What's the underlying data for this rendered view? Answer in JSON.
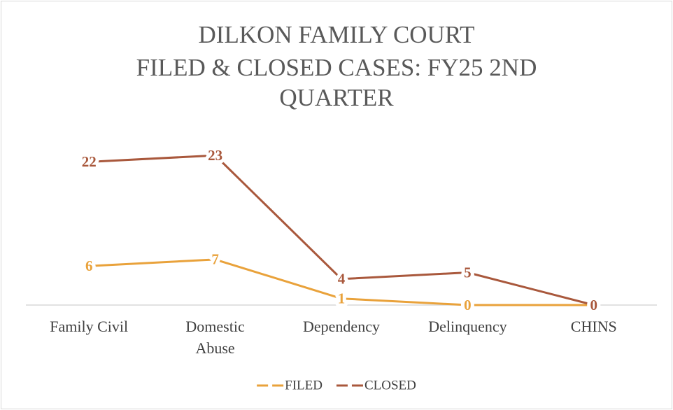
{
  "chart_data": {
    "type": "line",
    "title": [
      "DILKON FAMILY COURT",
      "FILED & CLOSED CASES: FY25 2ND",
      "QUARTER"
    ],
    "categories": [
      "Family Civil",
      "Domestic Abuse",
      "Dependency",
      "Delinquency",
      "CHINS"
    ],
    "series": [
      {
        "name": "FILED",
        "color": "#e9a23b",
        "values": [
          6,
          7,
          1,
          0,
          0
        ]
      },
      {
        "name": "CLOSED",
        "color": "#a9583c",
        "values": [
          22,
          23,
          4,
          5,
          0
        ]
      }
    ],
    "ylim": [
      0,
      25
    ],
    "legend": "bottom"
  }
}
